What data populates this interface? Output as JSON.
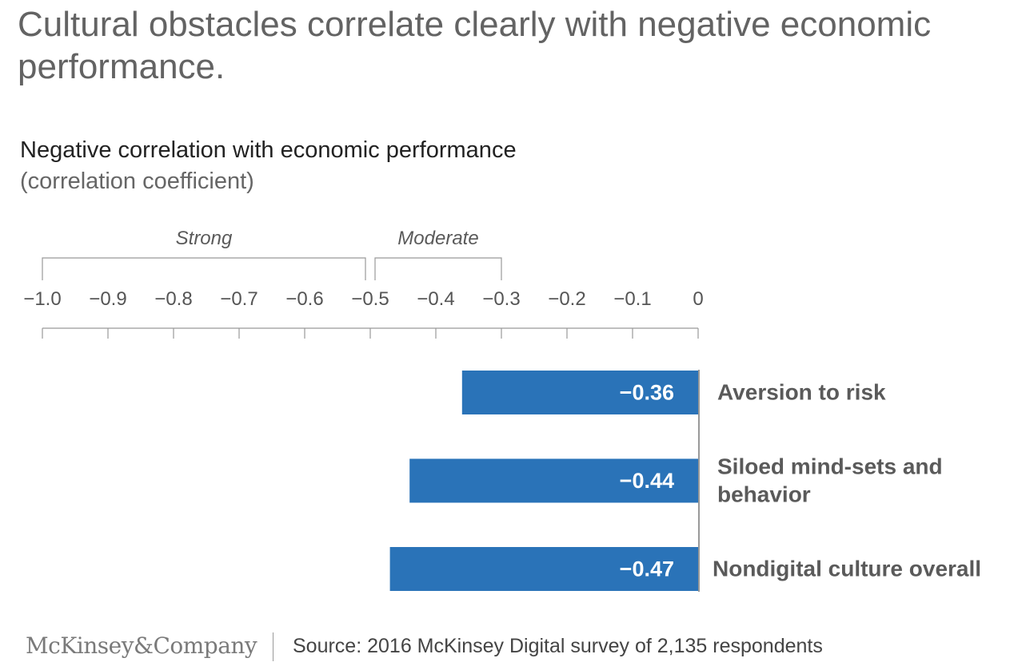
{
  "headline": "Cultural obstacles correlate clearly with negative economic performance.",
  "subtitle": "Negative correlation with economic performance",
  "unit": "(correlation coefficient)",
  "brand": {
    "logo_text": "McKinsey&Company"
  },
  "source": "Source: 2016 McKinsey Digital survey of 2,135 respondents",
  "colors": {
    "bar": "#2a73b8",
    "axis": "#999999",
    "label": "#5a5a5a",
    "tick_label": "#555555",
    "value_label": "#ffffff"
  },
  "chart_data": {
    "type": "bar",
    "orientation": "horizontal",
    "categories": [
      [
        "Aversion to risk"
      ],
      [
        "Siloed mind-sets and",
        "behavior"
      ],
      [
        "Nondigital culture overall"
      ]
    ],
    "values": [
      -0.36,
      -0.44,
      -0.47
    ],
    "value_labels": [
      "−0.36",
      "−0.44",
      "−0.47"
    ],
    "xlim": [
      -1.0,
      0
    ],
    "ticks": [
      -1.0,
      -0.9,
      -0.8,
      -0.7,
      -0.6,
      -0.5,
      -0.4,
      -0.3,
      -0.2,
      -0.1,
      0
    ],
    "tick_labels": [
      "−1.0",
      "−0.9",
      "−0.8",
      "−0.7",
      "−0.6",
      "−0.5",
      "−0.4",
      "−0.3",
      "−0.2",
      "−0.1",
      "0"
    ],
    "ranges": [
      {
        "label": "Strong",
        "from": -1.0,
        "to": -0.5
      },
      {
        "label": "Moderate",
        "from": -0.5,
        "to": -0.3
      }
    ]
  }
}
